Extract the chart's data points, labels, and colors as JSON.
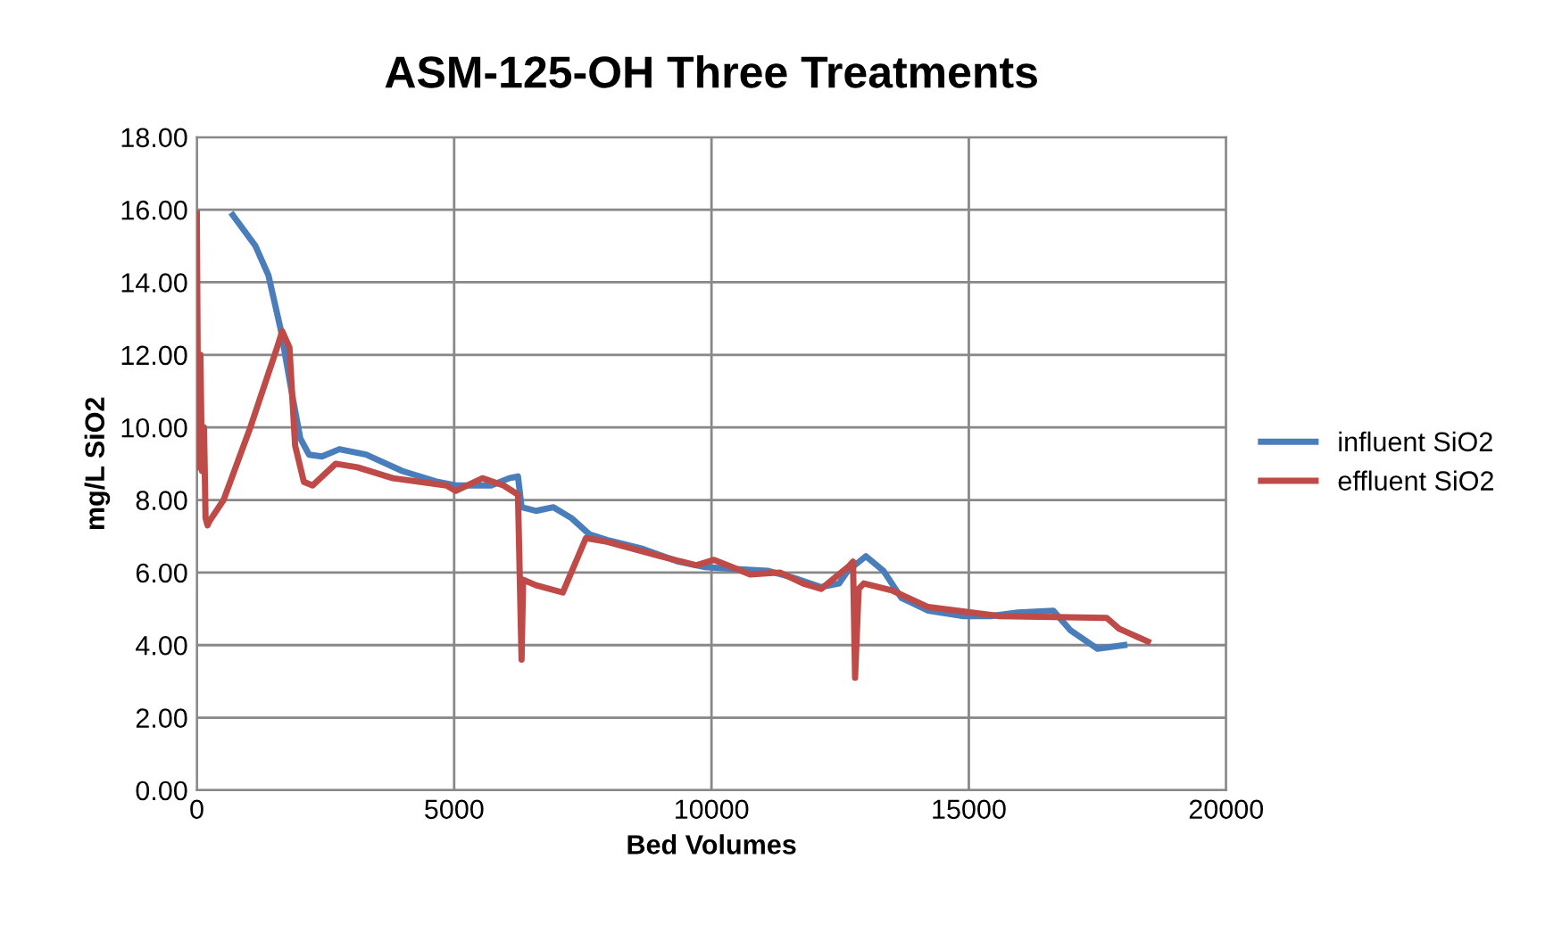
{
  "chart_data": {
    "type": "line",
    "title": "ASM-125-OH Three Treatments",
    "xlabel": "Bed Volumes",
    "ylabel": "mg/L SiO2",
    "xlim": [
      0,
      20000
    ],
    "xticks": [
      0,
      5000,
      10000,
      15000,
      20000
    ],
    "ylim": [
      0,
      18
    ],
    "yticks": [
      {
        "value": 0,
        "label": "0.00"
      },
      {
        "value": 2,
        "label": "2.00"
      },
      {
        "value": 4,
        "label": "4.00"
      },
      {
        "value": 6,
        "label": "6.00"
      },
      {
        "value": 8,
        "label": "8.00"
      },
      {
        "value": 10,
        "label": "10.00"
      },
      {
        "value": 12,
        "label": "12.00"
      },
      {
        "value": 14,
        "label": "14.00"
      },
      {
        "value": 16,
        "label": "16.00"
      },
      {
        "value": 18,
        "label": "18.00"
      }
    ],
    "grid": true,
    "legend": "right",
    "marker": "none",
    "line_style": "solid",
    "series": [
      {
        "name": "influent SiO2",
        "color": "#4a7ebb",
        "x": [
          700,
          1140,
          1390,
          1630,
          1840,
          2010,
          2180,
          2430,
          2770,
          3290,
          3990,
          4680,
          5030,
          5720,
          6070,
          6240,
          6310,
          6590,
          6930,
          7280,
          7630,
          7970,
          8670,
          9360,
          9880,
          10400,
          11090,
          11610,
          12130,
          12480,
          12650,
          13000,
          13340,
          13690,
          14210,
          14900,
          15420,
          15950,
          16640,
          16980,
          17500,
          18020
        ],
        "values": [
          15.85,
          15.0,
          14.2,
          12.7,
          11.0,
          9.7,
          9.25,
          9.2,
          9.4,
          9.25,
          8.8,
          8.5,
          8.4,
          8.4,
          8.6,
          8.65,
          7.8,
          7.7,
          7.8,
          7.5,
          7.05,
          6.9,
          6.65,
          6.3,
          6.15,
          6.1,
          6.05,
          5.85,
          5.6,
          5.7,
          6.05,
          6.45,
          6.05,
          5.3,
          4.95,
          4.8,
          4.8,
          4.9,
          4.95,
          4.4,
          3.9,
          4.0
        ]
      },
      {
        "name": "effluent SiO2",
        "color": "#be4b48",
        "x": [
          0,
          30,
          70,
          100,
          140,
          170,
          210,
          240,
          520,
          1040,
          1560,
          1660,
          1800,
          1910,
          2080,
          2250,
          2700,
          3120,
          3810,
          4850,
          5030,
          5550,
          5960,
          6240,
          6310,
          6340,
          6590,
          7110,
          7560,
          7970,
          9010,
          9700,
          10050,
          10400,
          10750,
          11330,
          11780,
          12130,
          12650,
          12750,
          12790,
          12860,
          12960,
          13520,
          14210,
          15600,
          17680,
          17920,
          18480
        ],
        "values": [
          15.9,
          8.9,
          12.0,
          8.8,
          10.0,
          7.5,
          7.3,
          7.4,
          8.0,
          10.0,
          12.2,
          12.65,
          12.2,
          9.5,
          8.5,
          8.4,
          9.0,
          8.9,
          8.6,
          8.4,
          8.25,
          8.6,
          8.4,
          8.15,
          3.6,
          5.8,
          5.65,
          5.45,
          6.95,
          6.85,
          6.45,
          6.2,
          6.35,
          6.15,
          5.95,
          6.0,
          5.7,
          5.55,
          6.15,
          6.3,
          3.1,
          5.55,
          5.7,
          5.5,
          5.05,
          4.8,
          4.75,
          4.45,
          4.1
        ]
      }
    ]
  }
}
